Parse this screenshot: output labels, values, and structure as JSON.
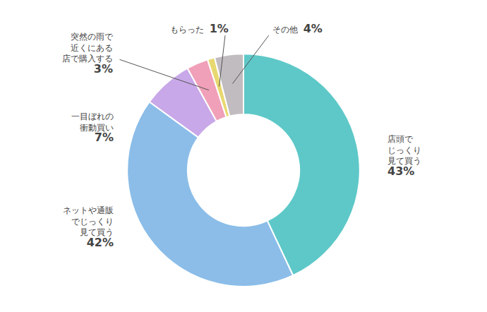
{
  "chart_data": {
    "type": "pie",
    "categories": [
      "店頭で\nじっくり\n見て買う",
      "ネットや通販\nでじっくり\n見て買う",
      "一目ぼれの\n衝動買い",
      "突然の雨で\n近くにある\n店で購入する",
      "もらった",
      "その他"
    ],
    "values": [
      43,
      42,
      7,
      3,
      1,
      4
    ],
    "value_labels": [
      "43%",
      "42%",
      "7%",
      "3%",
      "1%",
      "4%"
    ],
    "colors": [
      "#5ec8c8",
      "#8bbde8",
      "#c8a8e8",
      "#f0a0b8",
      "#e8d870",
      "#c0bcc0"
    ],
    "data_labels": true
  }
}
